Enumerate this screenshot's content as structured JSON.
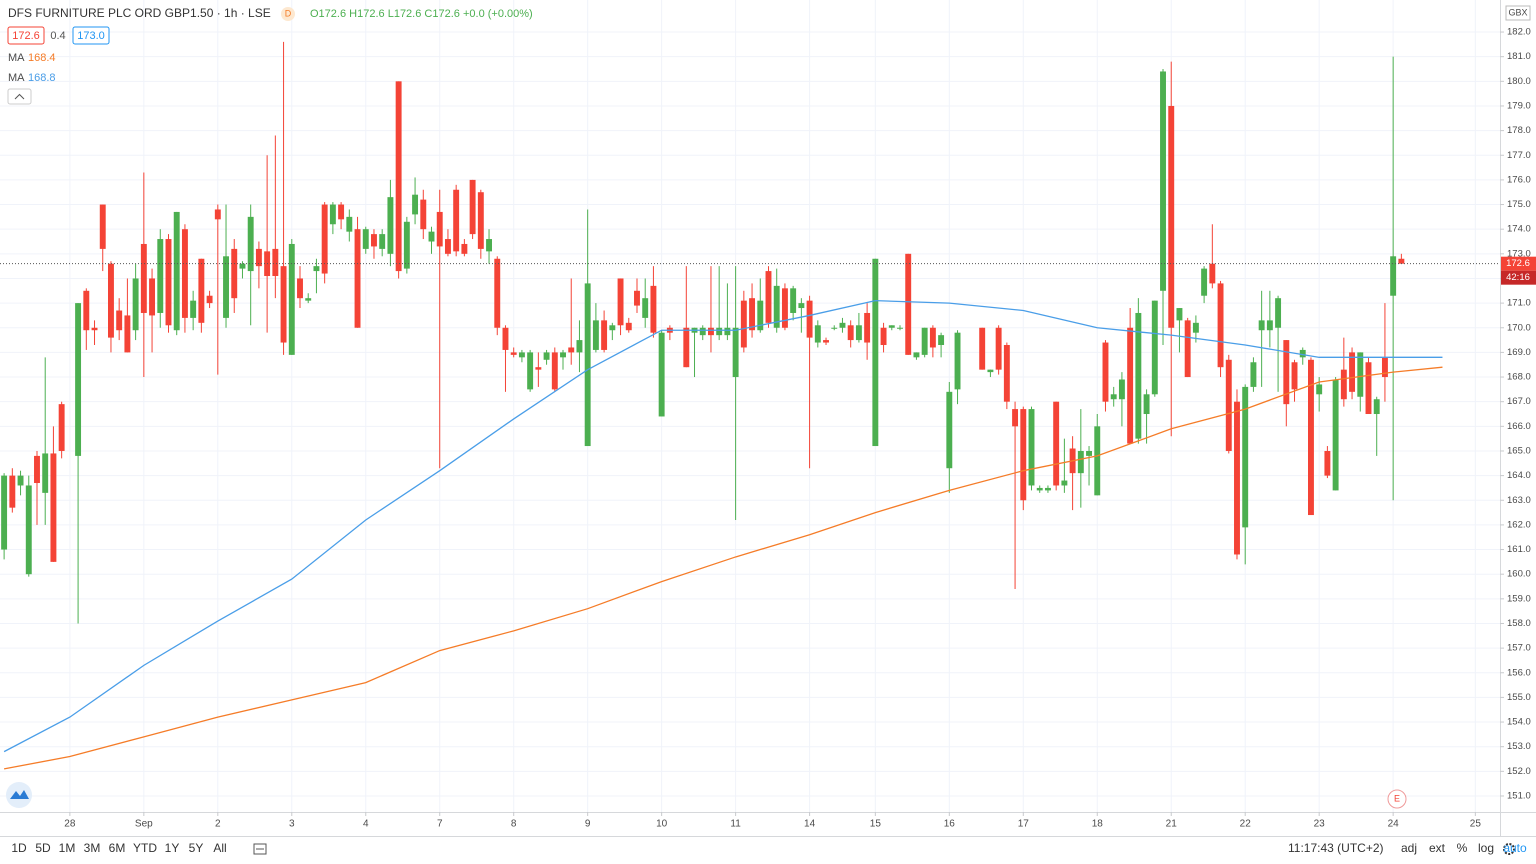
{
  "header": {
    "title": "DFS FURNITURE PLC ORD GBP1.50 · 1h · LSE",
    "badge": "D",
    "ohlc": [
      "O172.6",
      "H172.6",
      "L172.6",
      "C172.6",
      "+0.0 (+0.00%)"
    ],
    "quote": [
      "172.6",
      "0.4",
      "173.0"
    ]
  },
  "toolbar": {
    "ranges": [
      "1D",
      "5D",
      "1M",
      "3M",
      "6M",
      "YTD",
      "1Y",
      "5Y",
      "All"
    ],
    "clock": "11:17:43 (UTC+2)",
    "options": [
      "adj",
      "ext",
      "%",
      "log",
      "auto"
    ]
  },
  "chart_data": {
    "type": "candlestick",
    "currency": "GBX",
    "countdown": "42:16",
    "event_marker": "E",
    "up_color": "#4caf50",
    "down_color": "#f44336",
    "grid": true,
    "last_price": 172.6,
    "xlim": [
      -8.5,
      174
    ],
    "ylim": [
      150.35,
      183.3
    ],
    "xticks": [
      {
        "value": 0,
        "label": "28"
      },
      {
        "value": 9,
        "label": "Sep"
      },
      {
        "value": 18,
        "label": "2"
      },
      {
        "value": 27,
        "label": "3"
      },
      {
        "value": 36,
        "label": "4"
      },
      {
        "value": 45,
        "label": "7"
      },
      {
        "value": 54,
        "label": "8"
      },
      {
        "value": 63,
        "label": "9"
      },
      {
        "value": 72,
        "label": "10"
      },
      {
        "value": 81,
        "label": "11"
      },
      {
        "value": 90,
        "label": "14"
      },
      {
        "value": 98,
        "label": "15"
      },
      {
        "value": 107,
        "label": "16"
      },
      {
        "value": 116,
        "label": "17"
      },
      {
        "value": 125,
        "label": "18"
      },
      {
        "value": 134,
        "label": "21"
      },
      {
        "value": 143,
        "label": "22"
      },
      {
        "value": 152,
        "label": "23"
      },
      {
        "value": 161,
        "label": "24"
      },
      {
        "value": 171,
        "label": "25"
      }
    ],
    "yticks": [
      {
        "value": 151,
        "label": "151.0"
      },
      {
        "value": 152,
        "label": "152.0"
      },
      {
        "value": 153,
        "label": "153.0"
      },
      {
        "value": 154,
        "label": "154.0"
      },
      {
        "value": 155,
        "label": "155.0"
      },
      {
        "value": 156,
        "label": "156.0"
      },
      {
        "value": 157,
        "label": "157.0"
      },
      {
        "value": 158,
        "label": "158.0"
      },
      {
        "value": 159,
        "label": "159.0"
      },
      {
        "value": 160,
        "label": "160.0"
      },
      {
        "value": 161,
        "label": "161.0"
      },
      {
        "value": 162,
        "label": "162.0"
      },
      {
        "value": 163,
        "label": "163.0"
      },
      {
        "value": 164,
        "label": "164.0"
      },
      {
        "value": 165,
        "label": "165.0"
      },
      {
        "value": 166,
        "label": "166.0"
      },
      {
        "value": 167,
        "label": "167.0"
      },
      {
        "value": 168,
        "label": "168.0"
      },
      {
        "value": 169,
        "label": "169.0"
      },
      {
        "value": 170,
        "label": "170.0"
      },
      {
        "value": 171,
        "label": "171.0"
      },
      {
        "value": 172,
        "label": "172.0"
      },
      {
        "value": 173,
        "label": "173.0"
      },
      {
        "value": 174,
        "label": "174.0"
      },
      {
        "value": 175,
        "label": "175.0"
      },
      {
        "value": 176,
        "label": "176.0"
      },
      {
        "value": 177,
        "label": "177.0"
      },
      {
        "value": 178,
        "label": "178.0"
      },
      {
        "value": 179,
        "label": "179.0"
      },
      {
        "value": 180,
        "label": "180.0"
      },
      {
        "value": 181,
        "label": "181.0"
      },
      {
        "value": 182,
        "label": "182.0"
      }
    ],
    "candles": {
      "x": [
        -8,
        -7,
        -6,
        -5,
        -4,
        -3,
        -2,
        -1,
        1,
        2,
        3,
        4,
        5,
        6,
        7,
        8,
        9,
        10,
        11,
        12,
        13,
        14,
        15,
        16,
        17,
        18,
        19,
        20,
        21,
        22,
        23,
        24,
        25,
        26,
        27,
        28,
        29,
        30,
        31,
        32,
        33,
        34,
        35,
        36,
        37,
        38,
        39,
        40,
        41,
        42,
        43,
        44,
        45,
        46,
        47,
        48,
        49,
        50,
        51,
        52,
        53,
        54,
        55,
        56,
        57,
        58,
        59,
        60,
        61,
        62,
        63,
        64,
        65,
        66,
        67,
        68,
        69,
        70,
        71,
        72,
        73,
        75,
        76,
        77,
        78,
        79,
        80,
        81,
        82,
        83,
        84,
        85,
        86,
        87,
        88,
        89,
        90,
        91,
        92,
        93,
        94,
        95,
        96,
        97,
        98,
        99,
        100,
        101,
        102,
        103,
        104,
        105,
        106,
        107,
        108,
        111,
        112,
        113,
        114,
        115,
        116,
        117,
        118,
        119,
        120,
        121,
        122,
        123,
        124,
        125,
        126,
        127,
        128,
        129,
        130,
        131,
        132,
        133,
        134,
        135,
        136,
        137,
        138,
        139,
        140,
        141,
        142,
        143,
        144,
        145,
        146,
        147,
        148,
        149,
        150,
        151,
        152,
        153,
        154,
        155,
        156,
        157,
        158,
        159,
        160,
        161,
        162
      ],
      "open": [
        161.0,
        164.0,
        163.6,
        160.0,
        164.8,
        163.3,
        164.9,
        166.9,
        164.8,
        171.5,
        170.0,
        175.0,
        172.6,
        170.7,
        170.5,
        169.9,
        173.4,
        172.0,
        170.6,
        173.6,
        169.9,
        174.0,
        170.4,
        172.8,
        171.3,
        174.8,
        170.4,
        173.2,
        172.4,
        172.3,
        173.2,
        173.1,
        173.2,
        172.5,
        168.9,
        172.0,
        171.1,
        172.3,
        175.0,
        174.2,
        175.0,
        173.9,
        174.0,
        173.2,
        173.8,
        173.2,
        173.0,
        180.0,
        172.4,
        174.6,
        175.2,
        173.5,
        174.7,
        173.6,
        175.6,
        173.4,
        176.0,
        175.5,
        173.1,
        172.8,
        170.0,
        169.0,
        168.8,
        167.5,
        168.4,
        168.7,
        169.0,
        168.8,
        169.2,
        169.0,
        165.2,
        169.1,
        170.3,
        169.9,
        172.0,
        170.2,
        171.5,
        170.4,
        171.7,
        166.4,
        170.0,
        170.0,
        169.8,
        169.7,
        170.0,
        169.7,
        169.7,
        168.0,
        171.1,
        171.2,
        169.9,
        172.3,
        170.0,
        171.6,
        170.6,
        170.8,
        171.1,
        169.4,
        169.5,
        170.0,
        170.0,
        170.1,
        169.5,
        170.6,
        165.2,
        170.0,
        170.0,
        170.0,
        173.0,
        168.8,
        168.9,
        170.0,
        169.3,
        164.3,
        167.5,
        170.0,
        168.2,
        170.0,
        169.3,
        166.7,
        166.7,
        163.6,
        163.4,
        163.4,
        167.0,
        163.6,
        165.1,
        164.1,
        164.8,
        163.2,
        169.4,
        167.1,
        167.1,
        170.0,
        165.5,
        166.5,
        167.3,
        171.5,
        179.0,
        170.3,
        170.3,
        169.8,
        171.3,
        172.6,
        171.8,
        168.7,
        167.0,
        161.9,
        167.6,
        169.9,
        169.9,
        170.0,
        169.5,
        168.6,
        168.8,
        168.7,
        167.3,
        165.0,
        163.4,
        168.3,
        169.0,
        167.2,
        168.6,
        166.5,
        168.8,
        171.3,
        172.8
      ],
      "high": [
        164.1,
        164.3,
        164.2,
        164.0,
        165.0,
        168.8,
        166.0,
        167.0,
        171.0,
        171.6,
        170.3,
        175.0,
        172.7,
        171.2,
        172.0,
        172.6,
        176.3,
        172.4,
        174.0,
        173.8,
        174.7,
        174.2,
        171.5,
        172.8,
        171.5,
        175.0,
        175.0,
        173.6,
        172.7,
        175.0,
        173.5,
        177.0,
        177.8,
        181.6,
        173.6,
        172.5,
        171.4,
        172.8,
        175.1,
        175.1,
        175.1,
        174.8,
        174.5,
        174.1,
        174.0,
        174.0,
        176.0,
        180.0,
        174.5,
        176.1,
        175.6,
        174.1,
        175.6,
        174.0,
        175.8,
        173.6,
        176.0,
        175.6,
        174.0,
        172.9,
        170.1,
        169.2,
        169.1,
        169.1,
        169.0,
        169.1,
        169.2,
        169.1,
        172.0,
        170.3,
        174.8,
        171.0,
        170.7,
        170.2,
        172.0,
        170.4,
        172.0,
        172.0,
        172.5,
        169.9,
        170.1,
        172.5,
        170.0,
        170.1,
        172.5,
        172.5,
        171.8,
        172.5,
        171.5,
        171.8,
        172.0,
        172.5,
        172.4,
        171.8,
        171.7,
        171.2,
        171.3,
        170.3,
        169.6,
        170.1,
        170.4,
        170.3,
        170.6,
        171.0,
        172.8,
        170.2,
        170.1,
        170.1,
        173.0,
        169.0,
        170.0,
        170.1,
        169.8,
        167.8,
        169.9,
        170.0,
        168.3,
        170.1,
        169.4,
        167.0,
        166.8,
        166.8,
        163.6,
        163.6,
        167.0,
        165.5,
        165.6,
        166.7,
        165.2,
        166.5,
        169.5,
        167.6,
        168.2,
        170.8,
        171.2,
        167.5,
        171.1,
        180.5,
        180.8,
        170.8,
        170.4,
        170.5,
        172.5,
        174.2,
        171.9,
        168.9,
        167.5,
        167.7,
        168.8,
        171.5,
        171.5,
        171.3,
        169.5,
        168.7,
        169.2,
        168.8,
        168.0,
        165.2,
        168.0,
        169.6,
        169.2,
        169.0,
        168.8,
        167.2,
        171.0,
        181.0,
        173.0
      ],
      "low": [
        160.6,
        162.5,
        163.2,
        159.9,
        162.0,
        162.0,
        160.5,
        164.7,
        158.0,
        169.1,
        169.3,
        172.3,
        169.0,
        169.5,
        169.0,
        169.5,
        168.0,
        169.0,
        170.0,
        169.8,
        169.7,
        169.8,
        169.9,
        169.8,
        170.8,
        168.1,
        170.0,
        170.6,
        172.0,
        170.1,
        171.6,
        169.8,
        171.2,
        168.9,
        168.9,
        170.8,
        171.0,
        171.4,
        171.8,
        173.8,
        174.0,
        173.5,
        170.0,
        173.0,
        172.8,
        172.9,
        172.5,
        172.0,
        172.2,
        174.2,
        173.6,
        173.0,
        164.3,
        172.9,
        172.9,
        172.9,
        173.6,
        172.8,
        172.6,
        169.7,
        167.4,
        168.8,
        168.6,
        167.4,
        167.6,
        168.5,
        167.4,
        168.3,
        168.5,
        168.2,
        165.2,
        169.0,
        169.0,
        169.5,
        169.7,
        169.8,
        170.6,
        170.0,
        169.6,
        166.4,
        169.5,
        168.4,
        168.0,
        169.5,
        169.0,
        169.5,
        169.5,
        162.2,
        169.0,
        169.6,
        169.8,
        170.0,
        169.8,
        169.9,
        170.3,
        169.8,
        164.3,
        169.2,
        169.3,
        169.9,
        169.8,
        169.2,
        169.4,
        168.7,
        165.2,
        169.0,
        169.9,
        169.9,
        168.9,
        168.7,
        168.8,
        168.8,
        168.8,
        163.3,
        166.9,
        168.3,
        168.0,
        168.1,
        166.7,
        159.4,
        162.6,
        163.4,
        163.3,
        163.3,
        163.4,
        163.3,
        162.6,
        162.7,
        163.6,
        163.2,
        166.6,
        166.8,
        166.0,
        165.3,
        165.3,
        165.3,
        167.2,
        169.3,
        165.6,
        169.0,
        168.0,
        169.4,
        171.0,
        171.6,
        168.0,
        164.9,
        160.6,
        160.4,
        167.4,
        167.6,
        169.2,
        167.4,
        166.0,
        167.0,
        168.5,
        162.4,
        166.6,
        163.9,
        163.4,
        166.8,
        167.1,
        166.6,
        166.5,
        164.8,
        167.0,
        163.0,
        172.6
      ],
      "close": [
        164.0,
        162.7,
        164.0,
        163.6,
        163.7,
        164.9,
        160.5,
        165.0,
        171.0,
        169.9,
        169.9,
        173.2,
        169.6,
        169.9,
        169.0,
        172.0,
        170.6,
        170.5,
        173.6,
        170.1,
        174.7,
        170.4,
        171.1,
        170.2,
        171.0,
        174.4,
        172.9,
        171.2,
        172.6,
        174.5,
        172.5,
        172.1,
        172.1,
        169.4,
        173.4,
        171.2,
        171.2,
        172.5,
        172.2,
        175.0,
        174.4,
        174.5,
        170.0,
        174.0,
        173.3,
        173.8,
        175.3,
        172.3,
        174.3,
        175.4,
        174.0,
        173.9,
        173.3,
        173.0,
        173.1,
        173.0,
        173.8,
        173.2,
        173.6,
        170.0,
        169.1,
        168.9,
        169.0,
        169.0,
        168.3,
        169.0,
        167.5,
        169.0,
        169.0,
        169.5,
        171.8,
        170.3,
        169.1,
        170.1,
        170.1,
        169.9,
        170.9,
        171.2,
        169.8,
        169.8,
        169.8,
        168.4,
        170.0,
        170.0,
        169.7,
        170.0,
        170.0,
        170.0,
        169.2,
        169.9,
        171.1,
        170.2,
        171.7,
        170.0,
        171.6,
        171.0,
        169.6,
        170.1,
        169.4,
        170.0,
        170.2,
        169.5,
        170.1,
        169.4,
        172.8,
        169.3,
        170.1,
        170.0,
        168.9,
        169.0,
        170.0,
        169.2,
        169.7,
        167.4,
        169.8,
        168.3,
        168.3,
        168.3,
        167.0,
        166.0,
        163.0,
        166.7,
        163.5,
        163.5,
        163.6,
        163.8,
        164.1,
        165.0,
        165.0,
        166.0,
        167.0,
        167.3,
        167.9,
        165.3,
        170.6,
        167.3,
        171.1,
        180.4,
        170.0,
        170.8,
        168.0,
        170.2,
        172.4,
        171.8,
        168.4,
        165.0,
        160.8,
        167.6,
        168.6,
        170.3,
        170.3,
        171.2,
        166.9,
        167.5,
        169.1,
        162.4,
        167.7,
        164.0,
        167.9,
        167.1,
        167.4,
        169.0,
        166.5,
        167.1,
        168.0,
        172.9,
        172.6
      ]
    },
    "series": [
      {
        "name": "MA",
        "color": "#f57c28",
        "x": [
          -8,
          0,
          9,
          18,
          27,
          36,
          45,
          54,
          63,
          72,
          81,
          90,
          98,
          107,
          116,
          125,
          134,
          143,
          152,
          161,
          167
        ],
        "values": [
          152.1,
          152.6,
          153.4,
          154.2,
          154.9,
          155.6,
          156.9,
          157.7,
          158.6,
          159.7,
          160.7,
          161.6,
          162.5,
          163.4,
          164.2,
          164.8,
          165.9,
          166.7,
          167.8,
          168.2,
          168.4
        ]
      },
      {
        "name": "MA",
        "color": "#4a9ee8",
        "x": [
          -8,
          0,
          9,
          18,
          27,
          36,
          45,
          54,
          63,
          72,
          81,
          90,
          98,
          107,
          116,
          125,
          134,
          143,
          152,
          161,
          167
        ],
        "values": [
          152.8,
          154.2,
          156.3,
          158.1,
          159.8,
          162.2,
          164.2,
          166.3,
          168.3,
          169.9,
          169.9,
          170.5,
          171.1,
          171.0,
          170.7,
          170.0,
          169.7,
          169.3,
          168.8,
          168.8,
          168.8
        ]
      }
    ]
  }
}
